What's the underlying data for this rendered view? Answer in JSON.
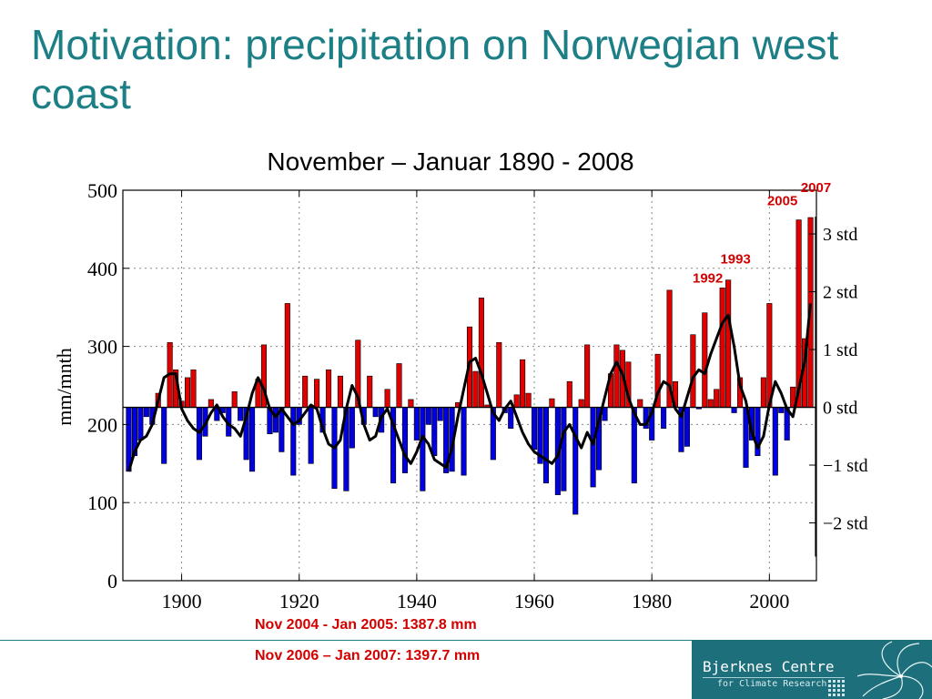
{
  "slide": {
    "title": "Motivation: precipitation on Norwegian west coast"
  },
  "notes": [
    "Nov 2004  - Jan 2005: 1387.8 mm",
    "Nov 2006 – Jan 2007: 1397.7 mm"
  ],
  "logo": {
    "name": "Bjerknes Centre",
    "subtitle": "for Climate Research"
  },
  "colors": {
    "title": "#1d7f86",
    "above_mean": "#e00000",
    "below_mean": "#0000e0",
    "annotation": "#d40000",
    "logo_bg": "#1c6f7b"
  },
  "chart_data": {
    "type": "bar",
    "title": "November – Januar 1890 - 2008",
    "ylabel": "mm/mnth",
    "xlabel": "",
    "xlim": [
      1890,
      2008
    ],
    "ylim": [
      0,
      500
    ],
    "x_ticks": [
      1900,
      1920,
      1940,
      1960,
      1980,
      2000
    ],
    "y_ticks": [
      0,
      100,
      200,
      300,
      400,
      500
    ],
    "baseline": 222,
    "grid": true,
    "right_axis": {
      "label_ticks": [
        "3 std",
        "2 std",
        "1 std",
        "0 std",
        "−1 std",
        "−2 std"
      ],
      "mean": 222,
      "std": 74
    },
    "years": [
      1891,
      1892,
      1893,
      1894,
      1895,
      1896,
      1897,
      1898,
      1899,
      1900,
      1901,
      1902,
      1903,
      1904,
      1905,
      1906,
      1907,
      1908,
      1909,
      1910,
      1911,
      1912,
      1913,
      1914,
      1915,
      1916,
      1917,
      1918,
      1919,
      1920,
      1921,
      1922,
      1923,
      1924,
      1925,
      1926,
      1927,
      1928,
      1929,
      1930,
      1931,
      1932,
      1933,
      1934,
      1935,
      1936,
      1937,
      1938,
      1939,
      1940,
      1941,
      1942,
      1943,
      1944,
      1945,
      1946,
      1947,
      1948,
      1949,
      1950,
      1951,
      1952,
      1953,
      1954,
      1955,
      1956,
      1957,
      1958,
      1959,
      1960,
      1961,
      1962,
      1963,
      1964,
      1965,
      1966,
      1967,
      1968,
      1969,
      1970,
      1971,
      1972,
      1973,
      1974,
      1975,
      1976,
      1977,
      1978,
      1979,
      1980,
      1981,
      1982,
      1983,
      1984,
      1985,
      1986,
      1987,
      1988,
      1989,
      1990,
      1991,
      1992,
      1993,
      1994,
      1995,
      1996,
      1997,
      1998,
      1999,
      2000,
      2001,
      2002,
      2003,
      2004,
      2005,
      2006,
      2007
    ],
    "values": [
      140,
      160,
      180,
      210,
      200,
      240,
      150,
      305,
      270,
      230,
      260,
      270,
      155,
      185,
      232,
      205,
      215,
      185,
      242,
      205,
      155,
      140,
      258,
      302,
      188,
      190,
      165,
      355,
      135,
      200,
      262,
      150,
      258,
      190,
      270,
      118,
      262,
      115,
      170,
      308,
      200,
      262,
      210,
      190,
      245,
      125,
      278,
      138,
      232,
      180,
      115,
      200,
      160,
      205,
      138,
      140,
      228,
      135,
      325,
      268,
      362,
      225,
      155,
      305,
      215,
      195,
      238,
      283,
      240,
      168,
      150,
      125,
      233,
      110,
      115,
      255,
      85,
      232,
      302,
      120,
      142,
      205,
      265,
      302,
      295,
      280,
      125,
      232,
      195,
      180,
      290,
      195,
      372,
      255,
      165,
      172,
      315,
      220,
      343,
      232,
      245,
      375,
      385,
      215,
      260,
      145,
      180,
      160,
      260,
      355,
      135,
      215,
      180,
      248,
      462,
      310,
      465
    ],
    "smoothed": [
      140,
      165,
      180,
      185,
      200,
      230,
      260,
      265,
      265,
      220,
      205,
      195,
      190,
      200,
      215,
      225,
      210,
      200,
      195,
      185,
      210,
      240,
      260,
      245,
      220,
      210,
      220,
      210,
      200,
      205,
      215,
      225,
      220,
      195,
      175,
      170,
      180,
      220,
      250,
      235,
      200,
      180,
      185,
      210,
      220,
      200,
      180,
      160,
      150,
      165,
      185,
      175,
      155,
      150,
      145,
      170,
      210,
      245,
      280,
      285,
      265,
      240,
      215,
      205,
      220,
      230,
      210,
      190,
      175,
      165,
      160,
      155,
      150,
      160,
      190,
      200,
      185,
      170,
      190,
      175,
      205,
      235,
      265,
      280,
      265,
      235,
      215,
      200,
      200,
      215,
      240,
      255,
      250,
      220,
      210,
      235,
      260,
      270,
      265,
      290,
      310,
      330,
      340,
      300,
      250,
      230,
      190,
      170,
      185,
      225,
      255,
      240,
      220,
      210,
      245,
      280,
      355
    ]
  }
}
